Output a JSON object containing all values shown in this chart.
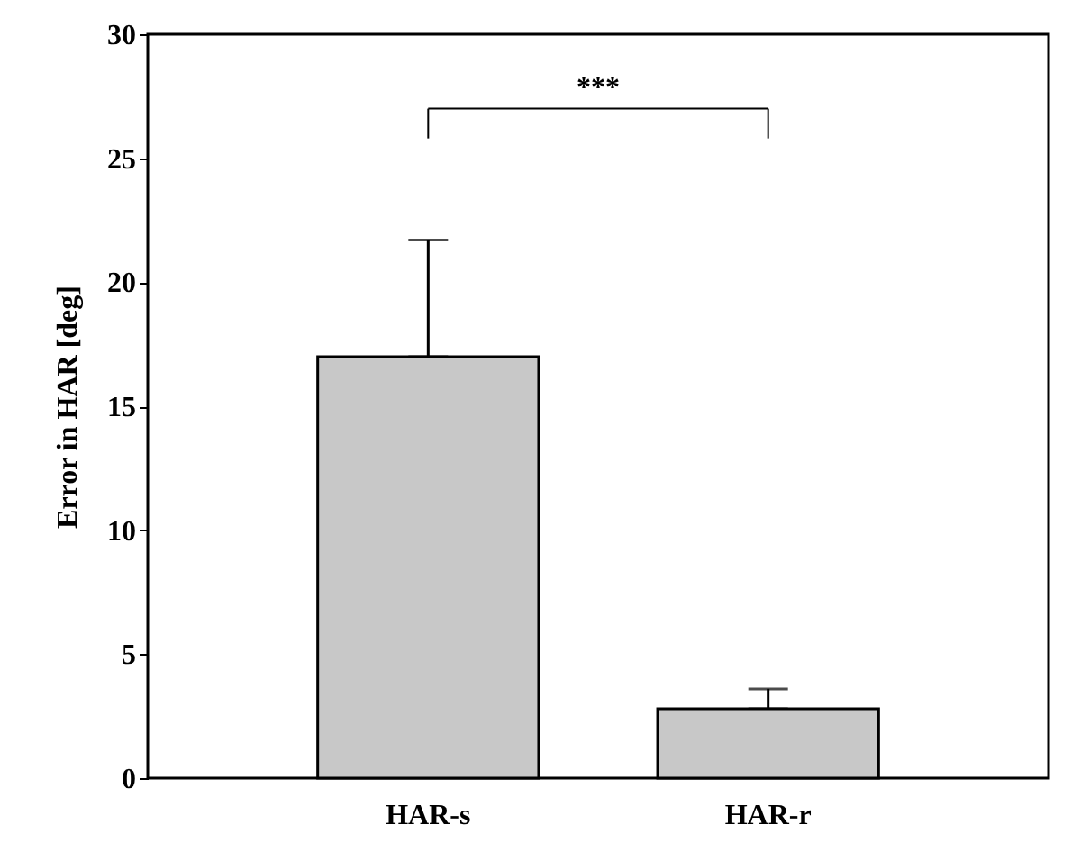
{
  "chart_data": {
    "type": "bar",
    "ylabel": "Error in HAR [deg]",
    "categories": [
      "HAR-s",
      "HAR-r"
    ],
    "values": [
      17.0,
      2.8
    ],
    "errors": [
      [
        17.0,
        21.7
      ],
      [
        2.8,
        3.6
      ]
    ],
    "color": "#c8c8c8",
    "ylim": [
      0,
      30
    ],
    "yticks": [
      0,
      5,
      10,
      15,
      20,
      25,
      30
    ],
    "grid": false,
    "annotations": [
      "***"
    ]
  }
}
